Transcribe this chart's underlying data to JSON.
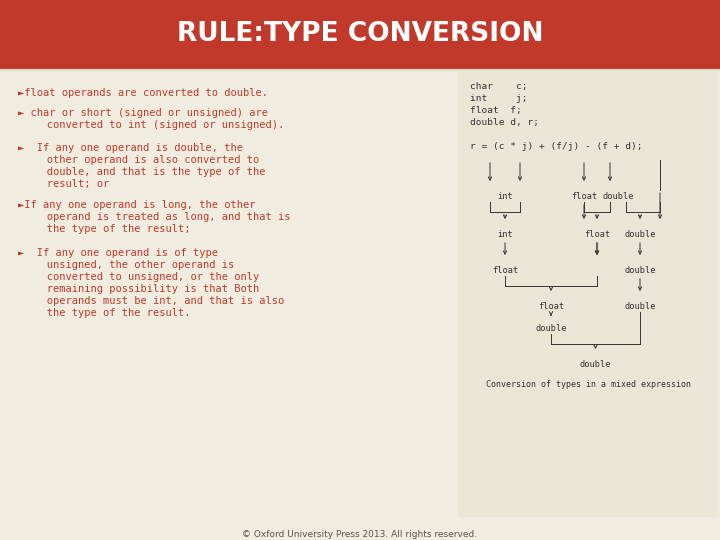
{
  "title": "RULE:TYPE CONVERSION",
  "title_bg": "#c0392b",
  "title_color": "#ffffff",
  "slide_bg": "#f0ede0",
  "text_color": "#c0392b",
  "bullet_points": [
    "►float operands are converted to double.",
    "► char or short (signed or unsigned) are\n   converted to int (signed or unsigned).",
    "►  If any one operand is double, the\n   other operand is also converted to\n   double, and that is the type of the\n   result; or",
    "►If any one operand is long, the other\n   operand is treated as long, and that is\n   the type of the result;",
    "►  If any one operand is of type\n   unsigned, the other operand is\n   converted to unsigned, or the only\n   remaining possibility is that Both\n   operands must be int, and that is also\n   the type of the result."
  ],
  "code_lines": [
    "char    c;",
    "int     j;",
    "float  f;",
    "double d, r;",
    "",
    "r = (c * j) + (f/j) - (f + d);"
  ],
  "diagram_caption": "Conversion of types in a mixed expression",
  "footer": "© Oxford University Press 2013. All rights reserved.",
  "footer_color": "#555555",
  "lbl_color": "#333333",
  "mono_color": "#333333"
}
